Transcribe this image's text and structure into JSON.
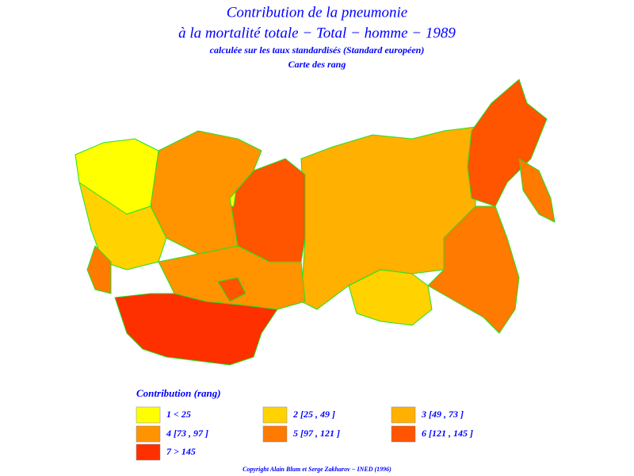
{
  "header": {
    "title": "Contribution de la pneumonie",
    "subtitle": "à la mortalité totale − Total − homme − 1989",
    "note": "calculée sur les taux standardisés (Standard européen)",
    "map_type": "Carte des rang"
  },
  "legend": {
    "title": "Contribution (rang)",
    "items": [
      {
        "label": "1  <  25",
        "color": "#ffff00"
      },
      {
        "label": "2  [25  ,  49  ]",
        "color": "#ffd200"
      },
      {
        "label": "3  [49  ,  73  ]",
        "color": "#ffb000"
      },
      {
        "label": "4  [73  ,  97  ]",
        "color": "#ff9400"
      },
      {
        "label": "5  [97  ,  121  ]",
        "color": "#ff7a00"
      },
      {
        "label": "6  [121  ,  145  ]",
        "color": "#ff5400"
      },
      {
        "label": "7  >  145",
        "color": "#ff3000"
      }
    ]
  },
  "footer": {
    "copyright": "Copyright Alain Blum et Serge Zakharov − INED (1996)"
  }
}
